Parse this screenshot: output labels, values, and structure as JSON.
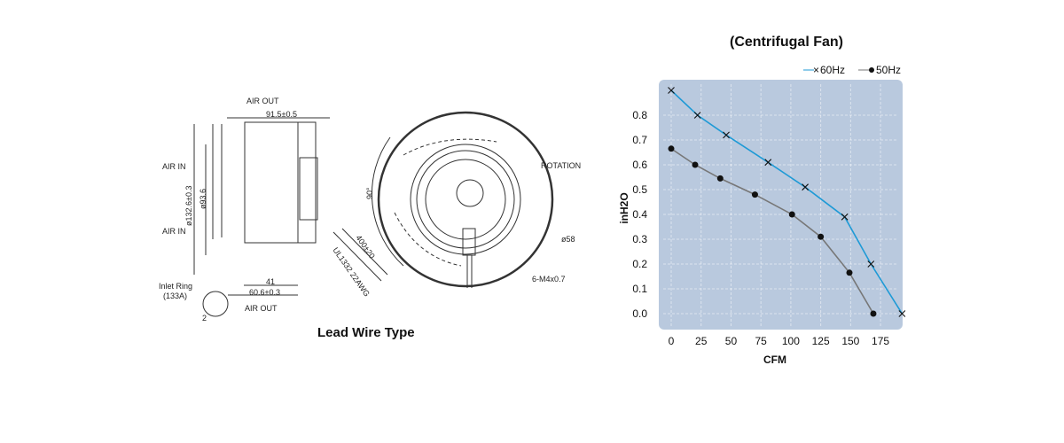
{
  "drawing": {
    "caption": "Lead Wire Type",
    "labels": {
      "air_out_top": "AIR OUT",
      "air_out_bottom": "AIR OUT",
      "air_in_1": "AIR IN",
      "air_in_2": "AIR IN",
      "width": "91.5±0.5",
      "outer_dia": "ø132.6±0.3",
      "inner_dia": "ø93.6",
      "depth_41": "41",
      "depth_60": "60.6±0.3",
      "inlet_ring": "Inlet Ring",
      "inlet_ring_code": "(133A)",
      "detail_2": "2",
      "lead_length": "400±20",
      "wire_spec": "UL1332 22AWG",
      "angle": "90°",
      "rotation": "ROTATION",
      "hub_dia": "ø58",
      "screws": "6-M4x0.7"
    }
  },
  "chart_data": {
    "type": "line",
    "title": "(Centrifugal Fan)",
    "xlabel": "CFM",
    "ylabel": "inH2O",
    "xlim": [
      -8,
      195
    ],
    "ylim": [
      -0.05,
      0.95
    ],
    "xticks": [
      "0",
      "25",
      "50",
      "75",
      "100",
      "125",
      "150",
      "175"
    ],
    "yticks": [
      "0.0",
      "0.1",
      "0.2",
      "0.3",
      "0.4",
      "0.5",
      "0.6",
      "0.7",
      "0.8"
    ],
    "grid": true,
    "legend_position": "top-right",
    "plot_background": "#b9c9de",
    "series": [
      {
        "name": "60Hz",
        "marker": "x",
        "color": "#1e9ad6",
        "x": [
          0,
          22,
          46,
          81,
          112,
          145,
          167,
          193
        ],
        "y": [
          0.9,
          0.8,
          0.72,
          0.61,
          0.51,
          0.39,
          0.2,
          0.0
        ]
      },
      {
        "name": "50Hz",
        "marker": "dot",
        "color": "#777777",
        "x": [
          0,
          20,
          41,
          70,
          101,
          125,
          149,
          169
        ],
        "y": [
          0.665,
          0.6,
          0.545,
          0.48,
          0.4,
          0.31,
          0.165,
          0.0
        ]
      }
    ]
  }
}
